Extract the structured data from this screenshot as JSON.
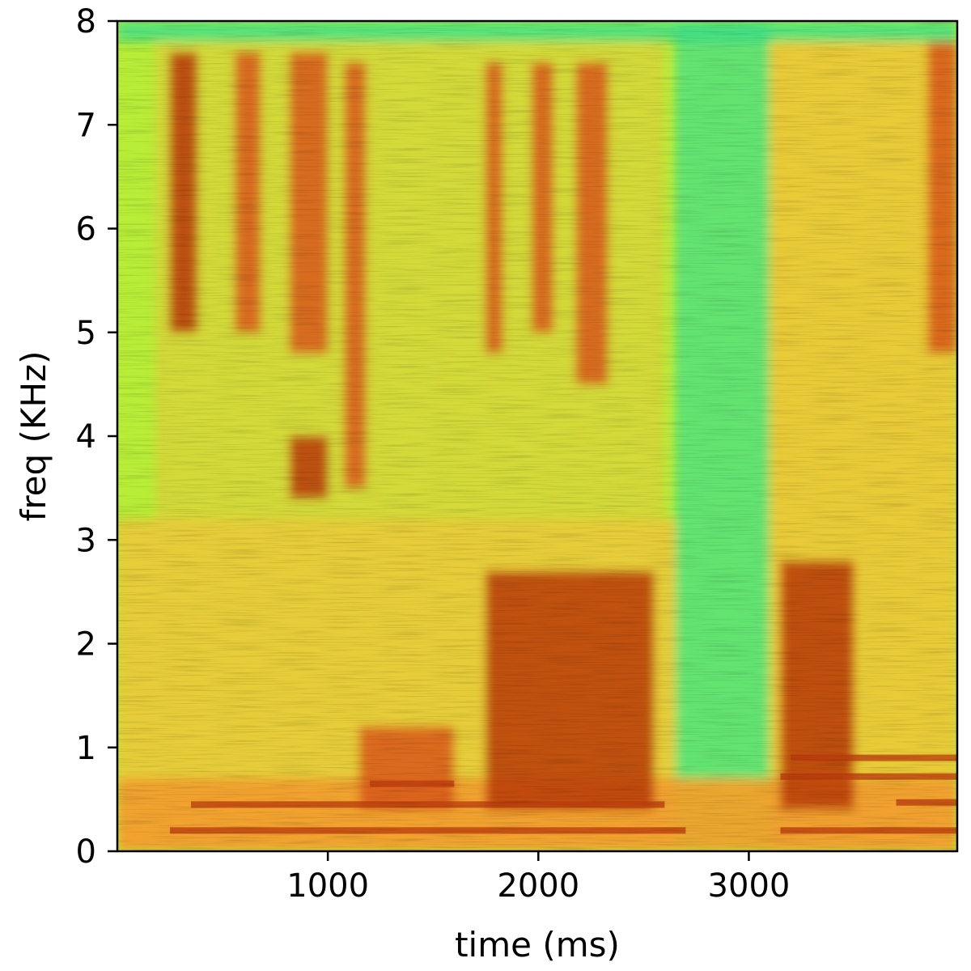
{
  "chart_data": {
    "type": "heatmap",
    "title": "",
    "xlabel": "time (ms)",
    "ylabel": "freq (KHz)",
    "xlim": [
      0,
      3990
    ],
    "ylim": [
      0,
      8
    ],
    "x_ticks": [
      1000,
      2000,
      3000
    ],
    "x_tick_labels": [
      "1000",
      "2000",
      "3000"
    ],
    "y_ticks": [
      0,
      1,
      2,
      3,
      4,
      5,
      6,
      7,
      8
    ],
    "y_tick_labels": [
      "0",
      "1",
      "2",
      "3",
      "4",
      "5",
      "6",
      "7",
      "8"
    ],
    "colormap": "turbo (green = low energy, orange/red = high energy)",
    "colors": {
      "low": "#8ff03c",
      "mid_low": "#c5ee34",
      "mid": "#f5c23a",
      "mid_high": "#f29a2e",
      "high": "#d8581a",
      "peak": "#b83a0c",
      "cold": "#3fe08a",
      "axis": "#000000"
    },
    "energy_regions": [
      {
        "t_start": 0,
        "t_end": 3990,
        "f_low": 0.0,
        "f_high": 0.7,
        "energy": 0.72
      },
      {
        "t_start": 250,
        "t_end": 380,
        "f_low": 5.0,
        "f_high": 7.7,
        "energy": 0.9
      },
      {
        "t_start": 560,
        "t_end": 680,
        "f_low": 5.0,
        "f_high": 7.7,
        "energy": 0.85
      },
      {
        "t_start": 820,
        "t_end": 1000,
        "f_low": 4.8,
        "f_high": 7.7,
        "energy": 0.85
      },
      {
        "t_start": 820,
        "t_end": 1000,
        "f_low": 3.4,
        "f_high": 4.0,
        "energy": 0.9
      },
      {
        "t_start": 1080,
        "t_end": 1180,
        "f_low": 3.5,
        "f_high": 7.6,
        "energy": 0.8
      },
      {
        "t_start": 1750,
        "t_end": 1830,
        "f_low": 4.8,
        "f_high": 7.6,
        "energy": 0.8
      },
      {
        "t_start": 1970,
        "t_end": 2070,
        "f_low": 5.0,
        "f_high": 7.6,
        "energy": 0.8
      },
      {
        "t_start": 2180,
        "t_end": 2330,
        "f_low": 4.5,
        "f_high": 7.6,
        "energy": 0.8
      },
      {
        "t_start": 1750,
        "t_end": 2550,
        "f_low": 0.4,
        "f_high": 2.7,
        "energy": 0.92
      },
      {
        "t_start": 1150,
        "t_end": 1600,
        "f_low": 0.4,
        "f_high": 1.2,
        "energy": 0.85
      },
      {
        "t_start": 3150,
        "t_end": 3500,
        "f_low": 0.4,
        "f_high": 2.8,
        "energy": 0.92
      },
      {
        "t_start": 3850,
        "t_end": 3990,
        "f_low": 4.8,
        "f_high": 7.8,
        "energy": 0.85
      },
      {
        "t_start": 2650,
        "t_end": 3100,
        "f_low": 0.7,
        "f_high": 8.0,
        "energy": 0.05
      }
    ]
  }
}
